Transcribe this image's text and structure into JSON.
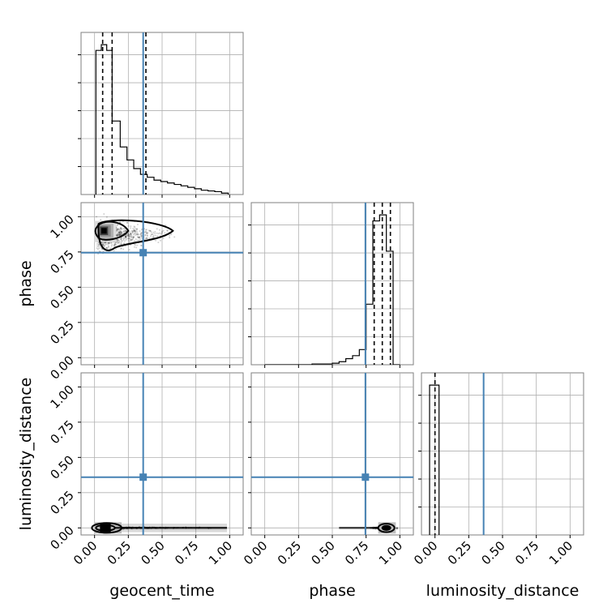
{
  "chart_data": {
    "type": "corner",
    "parameters": [
      "geocent_time",
      "phase",
      "luminosity_distance"
    ],
    "tick_labels": [
      "0.00",
      "0.25",
      "0.50",
      "0.75",
      "1.00"
    ],
    "tick_values": [
      0,
      0.25,
      0.5,
      0.75,
      1.0
    ],
    "xlim": [
      -0.1,
      1.1
    ],
    "ylim": [
      -0.05,
      1.1
    ],
    "grid": true,
    "truth_color": "#4682b4",
    "truths": {
      "geocent_time": 0.36,
      "phase": 0.745,
      "luminosity_distance": 0.36
    },
    "marginals": [
      {
        "parameter": "geocent_time",
        "bin_edges": [
          0.01,
          0.05,
          0.09,
          0.13,
          0.19,
          0.24,
          0.29,
          0.34,
          0.39,
          0.44,
          0.49,
          0.54,
          0.59,
          0.64,
          0.69,
          0.74,
          0.79,
          0.84,
          0.89,
          0.94,
          0.99
        ],
        "heights": [
          1.0,
          1.04,
          1.0,
          0.51,
          0.33,
          0.24,
          0.18,
          0.14,
          0.12,
          0.1,
          0.09,
          0.08,
          0.07,
          0.06,
          0.05,
          0.04,
          0.03,
          0.025,
          0.02,
          0.01
        ],
        "quantiles": [
          0.06,
          0.13,
          0.38
        ]
      },
      {
        "parameter": "phase",
        "bin_edges": [
          0.0,
          0.35,
          0.5,
          0.55,
          0.6,
          0.65,
          0.7,
          0.75,
          0.8,
          0.85,
          0.9,
          0.95,
          1.0
        ],
        "heights": [
          0.0,
          0.005,
          0.01,
          0.02,
          0.04,
          0.06,
          0.1,
          0.4,
          0.95,
          0.99,
          0.75,
          0.0
        ],
        "quantiles": [
          0.81,
          0.87,
          0.93
        ]
      },
      {
        "parameter": "luminosity_distance",
        "bin_edges": [
          -0.04,
          0.0,
          0.03
        ],
        "heights": [
          1.0,
          1.0
        ],
        "quantiles": [
          0.0
        ]
      }
    ],
    "joint": [
      {
        "x": "geocent_time",
        "y": "phase",
        "mode": [
          0.07,
          0.9
        ]
      },
      {
        "x": "geocent_time",
        "y": "luminosity_distance",
        "mode": [
          0.07,
          0.0
        ]
      },
      {
        "x": "phase",
        "y": "luminosity_distance",
        "mode": [
          0.9,
          0.0
        ]
      }
    ]
  }
}
